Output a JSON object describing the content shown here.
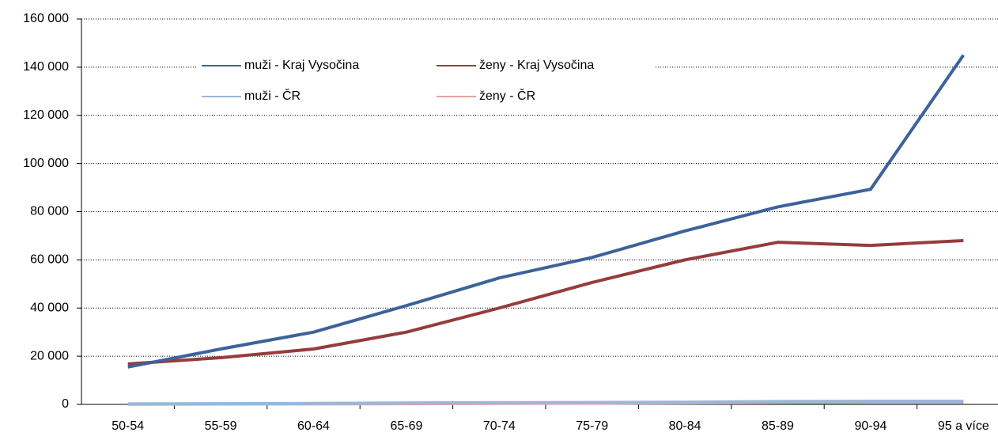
{
  "chart_data": {
    "type": "line",
    "categories": [
      "50-54",
      "55-59",
      "60-64",
      "65-69",
      "70-74",
      "75-79",
      "80-84",
      "85-89",
      "90-94",
      "95 a více"
    ],
    "series": [
      {
        "name": "muži - Kraj Vysočina",
        "color": "#3c6399",
        "values": [
          15500,
          23000,
          30000,
          41000,
          52500,
          61000,
          72000,
          82000,
          89300,
          145000
        ]
      },
      {
        "name": "ženy - Kraj Vysočina",
        "color": "#963c3c",
        "values": [
          16800,
          19400,
          23000,
          30000,
          40000,
          50600,
          60000,
          67300,
          66000,
          68000
        ]
      },
      {
        "name": "muži - ČR",
        "color": "#9ab8d9",
        "values": [
          200,
          300,
          400,
          600,
          700,
          800,
          900,
          1200,
          1300,
          1300
        ]
      },
      {
        "name": "ženy - ČR",
        "color": "#e6a3a3",
        "values": [
          100,
          150,
          200,
          300,
          400,
          500,
          600,
          800,
          900,
          900
        ]
      }
    ],
    "ylim": [
      0,
      160000
    ],
    "yticks": [
      0,
      {
        "value": 20000,
        "label": "20 000"
      },
      {
        "value": 40000,
        "label": "40 000"
      },
      {
        "value": 60000,
        "label": "60 000"
      },
      {
        "value": 80000,
        "label": "80 000"
      },
      {
        "value": 100000,
        "label": "100 000"
      },
      {
        "value": 120000,
        "label": "120 000"
      },
      {
        "value": 140000,
        "label": "140 000"
      },
      {
        "value": 160000,
        "label": "160 000"
      }
    ],
    "grid": true
  }
}
